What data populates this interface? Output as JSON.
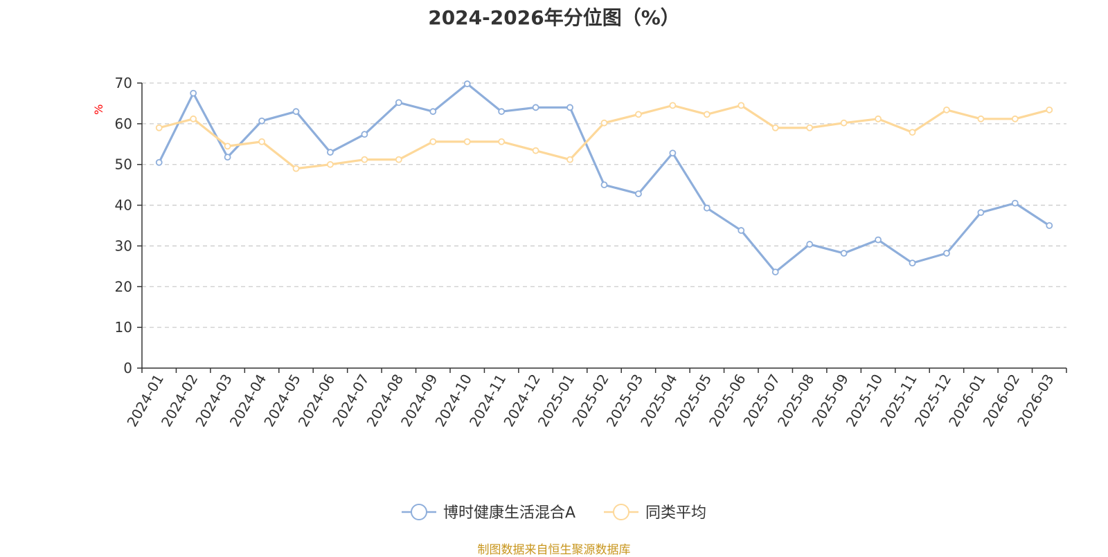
{
  "chart_data": {
    "type": "line",
    "title": "2024-2026年分位图（%）",
    "ylabel": "%",
    "ylim": [
      0,
      70
    ],
    "yticks": [
      0,
      10,
      20,
      30,
      40,
      50,
      60,
      70
    ],
    "grid": true,
    "legend_position": "bottom",
    "categories": [
      "2024-01",
      "2024-02",
      "2024-03",
      "2024-04",
      "2024-05",
      "2024-06",
      "2024-07",
      "2024-08",
      "2024-09",
      "2024-10",
      "2024-11",
      "2024-12",
      "2025-01",
      "2025-02",
      "2025-03",
      "2025-04",
      "2025-05",
      "2025-06",
      "2025-07",
      "2025-08",
      "2025-09",
      "2025-10",
      "2025-11",
      "2025-12",
      "2026-01",
      "2026-02",
      "2026-03"
    ],
    "series": [
      {
        "name": "博时健康生活混合A",
        "color": "#8eaedb",
        "values": [
          50.5,
          67.5,
          51.8,
          60.7,
          63.0,
          53.0,
          57.4,
          65.2,
          63.0,
          69.8,
          63.0,
          64.0,
          64.0,
          45.0,
          42.8,
          52.8,
          39.3,
          33.8,
          23.6,
          30.4,
          28.2,
          31.5,
          25.8,
          28.2,
          38.2,
          40.5,
          35.0
        ]
      },
      {
        "name": "同类平均",
        "color": "#fdd89a",
        "values": [
          59.0,
          61.2,
          54.5,
          55.6,
          49.0,
          50.0,
          51.2,
          51.2,
          55.6,
          55.6,
          55.6,
          53.4,
          51.2,
          60.2,
          62.3,
          64.5,
          62.3,
          64.5,
          59.0,
          59.0,
          60.2,
          61.2,
          57.9,
          63.4,
          61.2,
          61.2,
          63.4
        ]
      }
    ]
  },
  "source_note": "制图数据来自恒生聚源数据库",
  "colors": {
    "axis": "#333333",
    "grid": "#cccccc",
    "ylabel": "#ff0000",
    "source": "#c8961e"
  }
}
